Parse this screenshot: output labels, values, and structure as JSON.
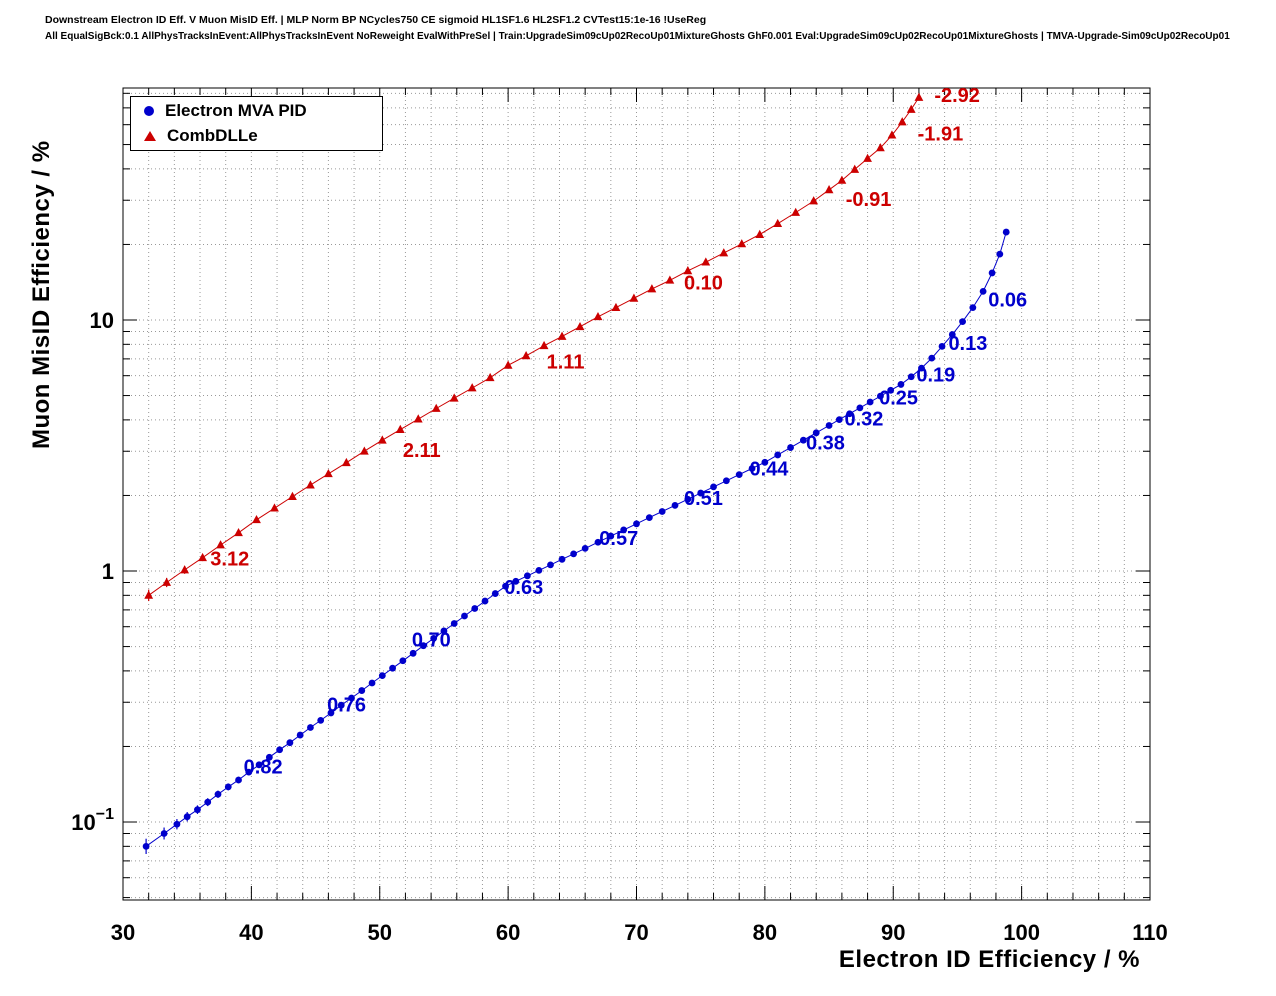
{
  "header": {
    "line1": "Downstream Electron ID Eff. V Muon MisID Eff. | MLP Norm BP NCycles750 CE sigmoid HL1SF1.6 HL2SF1.2 CVTest15:1e-16 !UseReg",
    "line2": "All EqualSigBck:0.1 AllPhysTracksInEvent:AllPhysTracksInEvent NoReweight EvalWithPreSel | Train:UpgradeSim09cUp02RecoUp01MixtureGhosts GhF0.001 Eval:UpgradeSim09cUp02RecoUp01MixtureGhosts | TMVA-Upgrade-Sim09cUp02RecoUp01",
    "line2_short": "TMVA-Upgrade-Sim09cUp02RecoUp01"
  },
  "chart_data": {
    "type": "scatter",
    "title": "",
    "xlabel": "Electron ID Efficiency / %",
    "ylabel": "Muon MisID Efficiency / %",
    "y_scale": "log",
    "xlim": [
      30,
      110
    ],
    "ylim": [
      0.0489,
      84
    ],
    "xticks": [
      30,
      40,
      50,
      60,
      70,
      80,
      90,
      100,
      110
    ],
    "x_minor_step": 2,
    "ytick_exponents": [
      -1,
      0,
      1
    ],
    "grid": true,
    "legend_position": "top-left",
    "series": [
      {
        "name": "Electron MVA PID",
        "color": "#0000cc",
        "marker": "circle",
        "err_scale": 3.5,
        "x": [
          31.8,
          33.2,
          34.2,
          35.0,
          35.8,
          36.6,
          37.4,
          38.2,
          39.0,
          39.8,
          40.6,
          41.4,
          42.2,
          43.0,
          43.8,
          44.6,
          45.4,
          46.2,
          47.0,
          47.8,
          48.6,
          49.4,
          50.2,
          51.0,
          51.8,
          52.6,
          53.4,
          54.2,
          55.0,
          55.8,
          56.6,
          57.4,
          58.2,
          59.0,
          59.8,
          60.6,
          61.5,
          62.4,
          63.3,
          64.2,
          65.1,
          66.0,
          67.0,
          68.0,
          69.0,
          70.0,
          71.0,
          72.0,
          73.0,
          74.0,
          75.0,
          76.0,
          77.0,
          78.0,
          79.0,
          80.0,
          81.0,
          82.0,
          83.0,
          84.0,
          85.0,
          85.8,
          86.6,
          87.4,
          88.2,
          89.0,
          89.8,
          90.6,
          91.4,
          92.2,
          93.0,
          93.8,
          94.6,
          95.4,
          96.2,
          97.0,
          97.7,
          98.3,
          98.8
        ],
        "y": [
          0.08,
          0.09,
          0.098,
          0.105,
          0.112,
          0.12,
          0.129,
          0.138,
          0.147,
          0.158,
          0.169,
          0.181,
          0.194,
          0.207,
          0.222,
          0.238,
          0.254,
          0.272,
          0.292,
          0.312,
          0.334,
          0.358,
          0.383,
          0.41,
          0.439,
          0.47,
          0.504,
          0.539,
          0.577,
          0.618,
          0.662,
          0.709,
          0.759,
          0.813,
          0.87,
          0.91,
          0.957,
          1.006,
          1.058,
          1.113,
          1.17,
          1.231,
          1.302,
          1.378,
          1.458,
          1.542,
          1.632,
          1.726,
          1.826,
          1.932,
          2.044,
          2.163,
          2.288,
          2.421,
          2.561,
          2.71,
          2.9,
          3.103,
          3.32,
          3.552,
          3.8,
          4.01,
          4.232,
          4.466,
          4.713,
          4.973,
          5.248,
          5.538,
          5.94,
          6.43,
          7.05,
          7.85,
          8.75,
          9.85,
          11.2,
          13.0,
          15.4,
          18.3,
          22.4
        ],
        "labels": [
          {
            "text": "0.06",
            "x": 97.4,
            "y": 11.3
          },
          {
            "text": "0.13",
            "x": 94.3,
            "y": 7.6
          },
          {
            "text": "0.19",
            "x": 91.8,
            "y": 5.7
          },
          {
            "text": "0.25",
            "x": 88.9,
            "y": 4.6
          },
          {
            "text": "0.32",
            "x": 86.2,
            "y": 3.8
          },
          {
            "text": "0.38",
            "x": 83.2,
            "y": 3.05
          },
          {
            "text": "0.44",
            "x": 78.8,
            "y": 2.4
          },
          {
            "text": "0.51",
            "x": 73.7,
            "y": 1.83
          },
          {
            "text": "0.57",
            "x": 67.1,
            "y": 1.27
          },
          {
            "text": "0.63",
            "x": 59.7,
            "y": 0.81
          },
          {
            "text": "0.70",
            "x": 52.5,
            "y": 0.5
          },
          {
            "text": "0.76",
            "x": 45.9,
            "y": 0.275
          },
          {
            "text": "0.82",
            "x": 39.4,
            "y": 0.156
          }
        ]
      },
      {
        "name": "CombDLLe",
        "color": "#cc0000",
        "marker": "triangle",
        "err_scale": 2.5,
        "x": [
          32.0,
          33.4,
          34.8,
          36.2,
          37.6,
          39.0,
          40.4,
          41.8,
          43.2,
          44.6,
          46.0,
          47.4,
          48.8,
          50.2,
          51.6,
          53.0,
          54.4,
          55.8,
          57.2,
          58.6,
          60.0,
          61.4,
          62.8,
          64.2,
          65.6,
          67.0,
          68.4,
          69.8,
          71.2,
          72.6,
          74.0,
          75.4,
          76.8,
          78.2,
          79.6,
          81.0,
          82.4,
          83.8,
          85.0,
          86.0,
          87.0,
          88.0,
          89.0,
          89.9,
          90.7,
          91.4,
          92.0
        ],
        "y": [
          0.8,
          0.9,
          1.01,
          1.13,
          1.27,
          1.42,
          1.6,
          1.78,
          1.98,
          2.2,
          2.44,
          2.7,
          3.0,
          3.32,
          3.66,
          4.03,
          4.44,
          4.88,
          5.36,
          5.89,
          6.6,
          7.2,
          7.9,
          8.6,
          9.4,
          10.3,
          11.2,
          12.2,
          13.3,
          14.4,
          15.7,
          17.0,
          18.5,
          20.1,
          21.9,
          24.2,
          26.8,
          29.8,
          33.0,
          36.0,
          39.8,
          44.0,
          48.5,
          54.5,
          61.5,
          69.0,
          77.0
        ],
        "labels": [
          {
            "text": "-2.92",
            "x": 93.2,
            "y": 74
          },
          {
            "text": "-1.91",
            "x": 91.9,
            "y": 52
          },
          {
            "text": "-0.91",
            "x": 86.3,
            "y": 28.5
          },
          {
            "text": "0.10",
            "x": 73.7,
            "y": 13.2
          },
          {
            "text": "1.11",
            "x": 63.0,
            "y": 6.4
          },
          {
            "text": "2.11",
            "x": 51.8,
            "y": 2.85
          },
          {
            "text": "3.12",
            "x": 36.8,
            "y": 1.05
          }
        ]
      }
    ]
  }
}
